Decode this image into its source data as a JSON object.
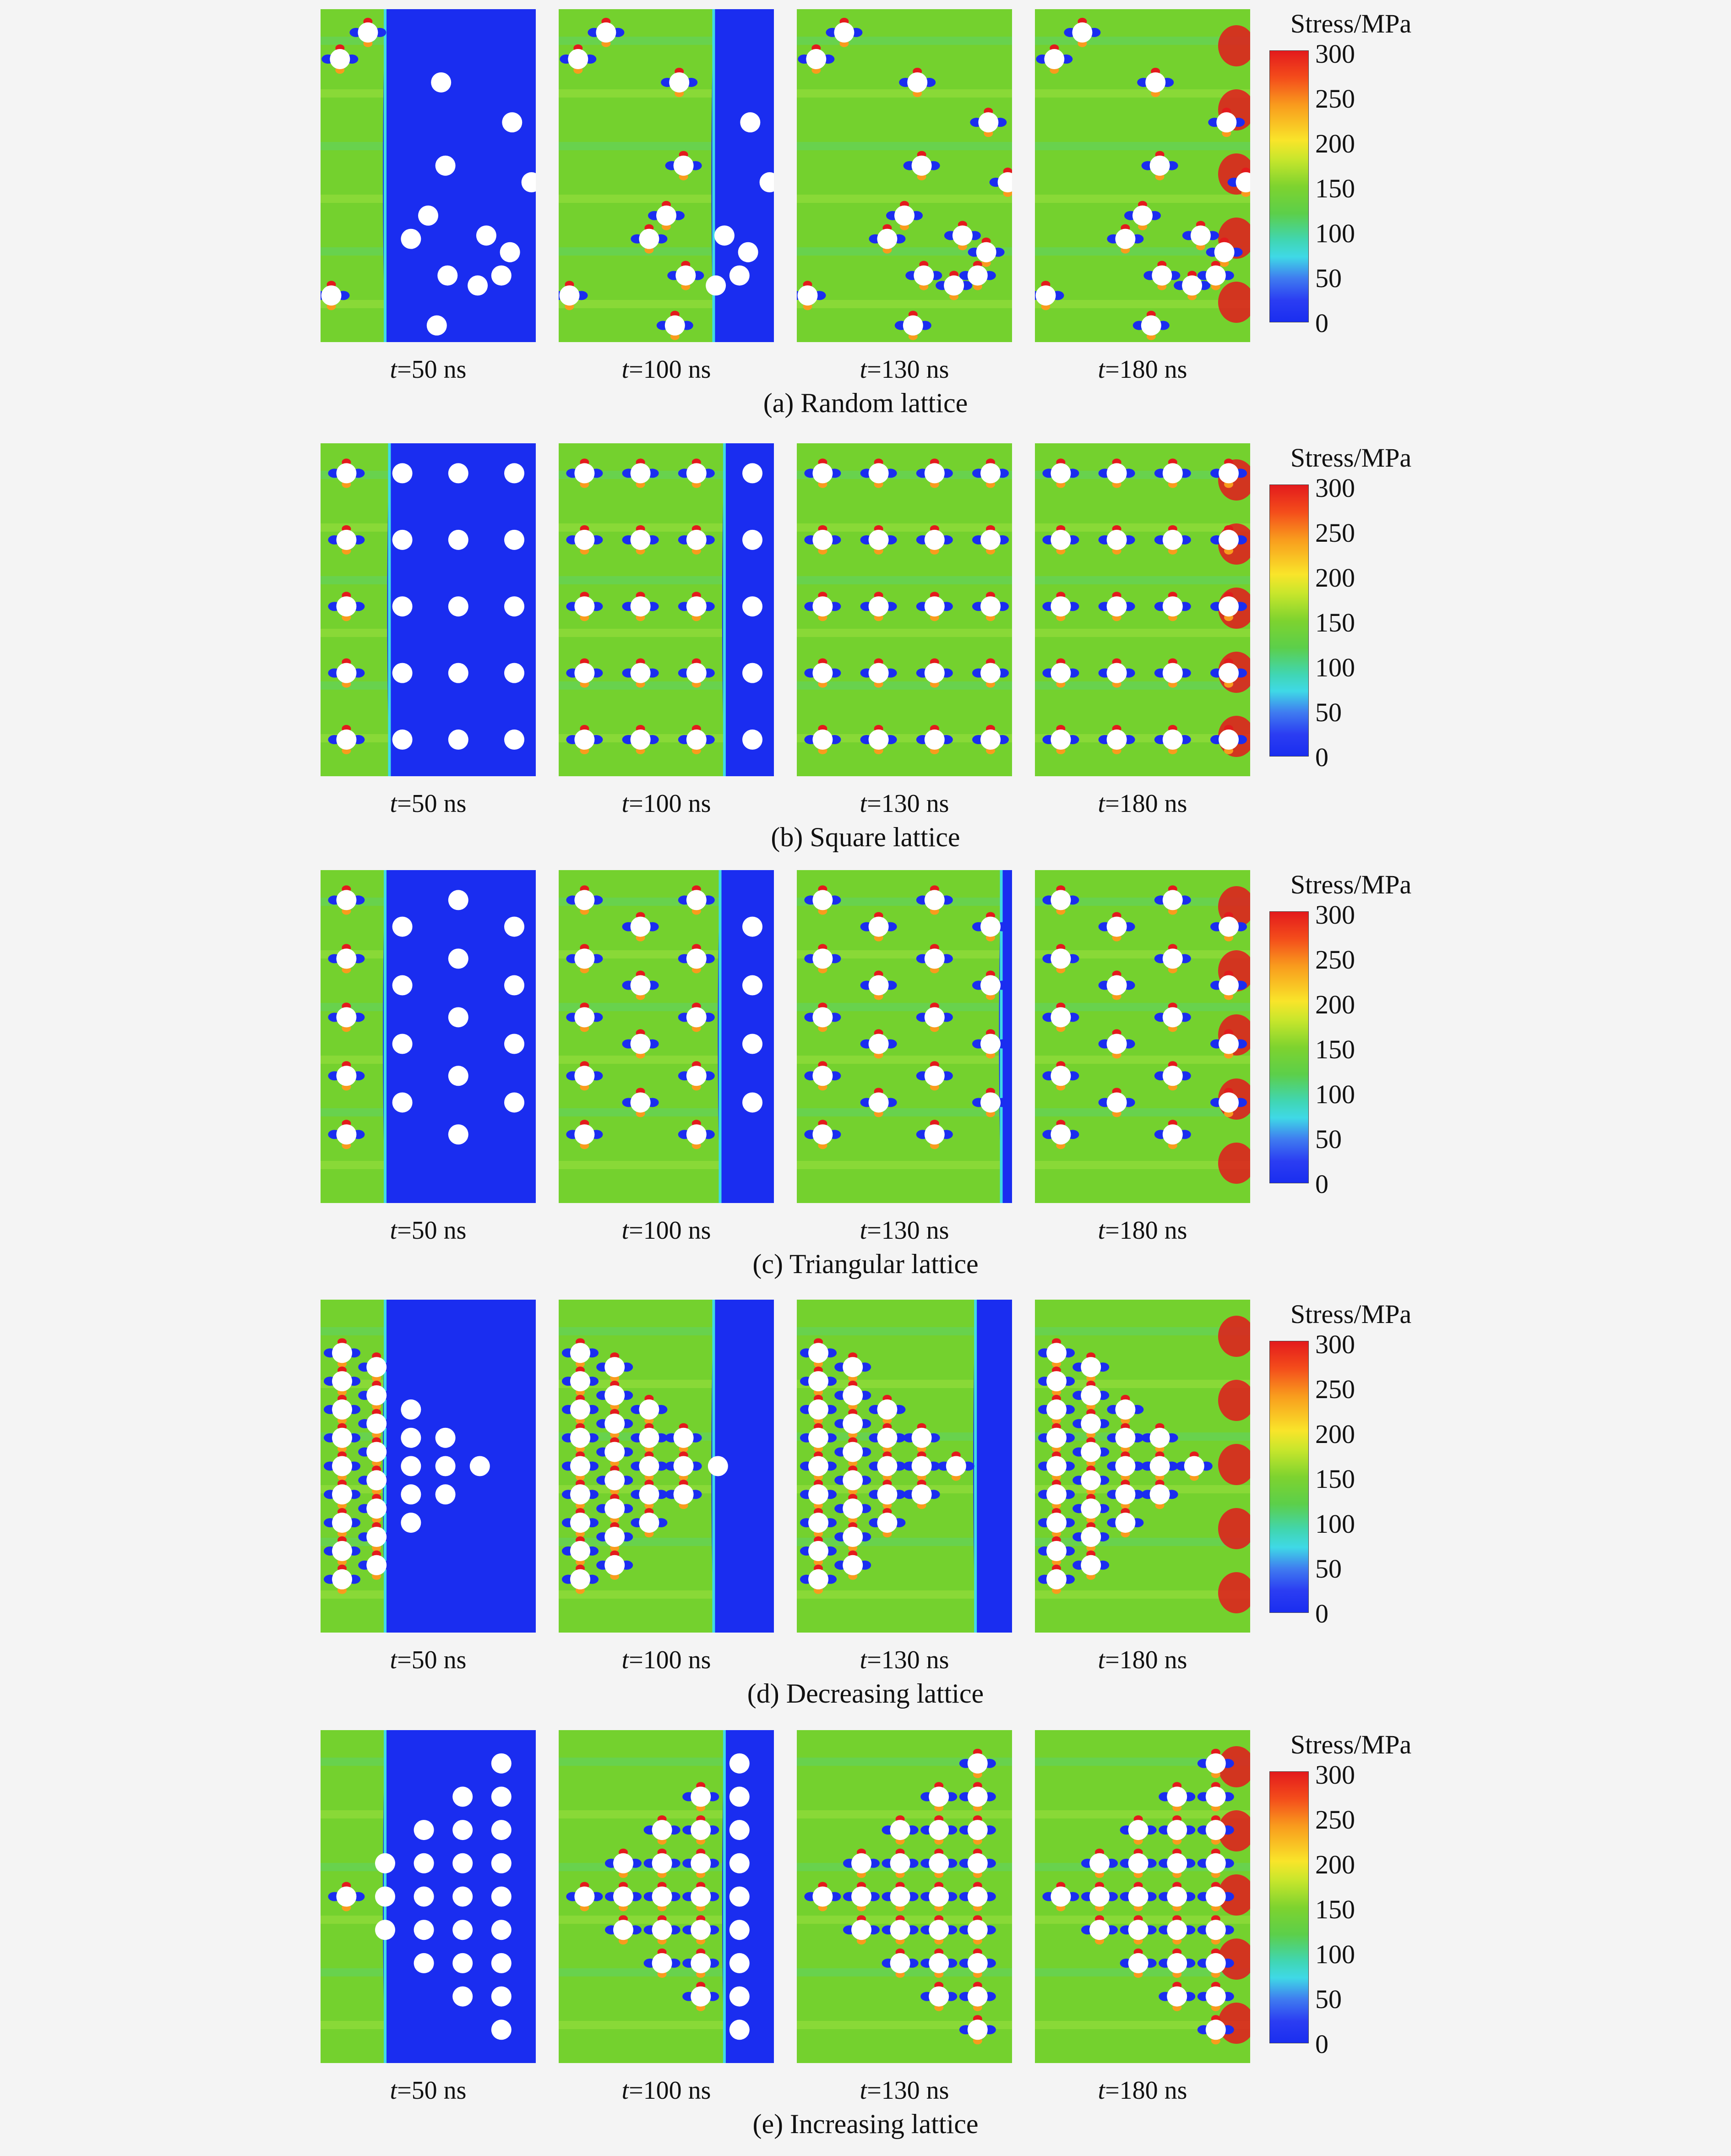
{
  "time_labels": [
    "=50 ns",
    "=100 ns",
    "=130 ns",
    "=180 ns"
  ],
  "time_var": "t",
  "rows": [
    {
      "caption": "(a) Random lattice",
      "layout": "random",
      "fronts": [
        0.3,
        0.72,
        1.0,
        1.0
      ]
    },
    {
      "caption": "(b) Square lattice",
      "layout": "square",
      "fronts": [
        0.32,
        0.77,
        1.0,
        1.0
      ]
    },
    {
      "caption": "(c) Triangular lattice",
      "layout": "triangular",
      "fronts": [
        0.3,
        0.75,
        0.95,
        1.0
      ]
    },
    {
      "caption": "(d) Decreasing lattice",
      "layout": "decreasing",
      "fronts": [
        0.3,
        0.72,
        0.83,
        1.0
      ]
    },
    {
      "caption": "(e) Increasing lattice",
      "layout": "increasing",
      "fronts": [
        0.3,
        0.77,
        1.0,
        1.0
      ]
    }
  ],
  "colorbar": {
    "title": "Stress/MPa",
    "ticks": [
      "300",
      "250",
      "200",
      "150",
      "100",
      "50",
      "0"
    ],
    "min": 0,
    "max": 300
  },
  "colors": {
    "unstressed": "#1a2df0",
    "mid_stress": "#74d12e",
    "high_stress": "#e31a1c",
    "pore": "#ffffff"
  }
}
